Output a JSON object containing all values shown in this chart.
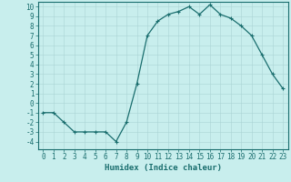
{
  "x": [
    0,
    1,
    2,
    3,
    4,
    5,
    6,
    7,
    8,
    9,
    10,
    11,
    12,
    13,
    14,
    15,
    16,
    17,
    18,
    19,
    20,
    21,
    22,
    23
  ],
  "y": [
    -1,
    -1,
    -2,
    -3,
    -3,
    -3,
    -3,
    -4,
    -2,
    2,
    7,
    8.5,
    9.2,
    9.5,
    10,
    9.2,
    10.2,
    9.2,
    8.8,
    8,
    7,
    5,
    3,
    1.5
  ],
  "line_color": "#1a6e6e",
  "marker": "+",
  "bg_color": "#c8eeed",
  "grid_color_major": "#aad4d4",
  "grid_color_minor": "#bce0e0",
  "xlabel": "Humidex (Indice chaleur)",
  "ylim": [
    -4.8,
    10.5
  ],
  "xlim": [
    -0.5,
    23.5
  ],
  "yticks": [
    -4,
    -3,
    -2,
    -1,
    0,
    1,
    2,
    3,
    4,
    5,
    6,
    7,
    8,
    9,
    10
  ],
  "xticks": [
    0,
    1,
    2,
    3,
    4,
    5,
    6,
    7,
    8,
    9,
    10,
    11,
    12,
    13,
    14,
    15,
    16,
    17,
    18,
    19,
    20,
    21,
    22,
    23
  ],
  "axis_color": "#1a6e6e",
  "label_fontsize": 6.5,
  "tick_fontsize": 5.5,
  "linewidth": 0.9,
  "markersize": 3.5,
  "markeredgewidth": 0.8
}
